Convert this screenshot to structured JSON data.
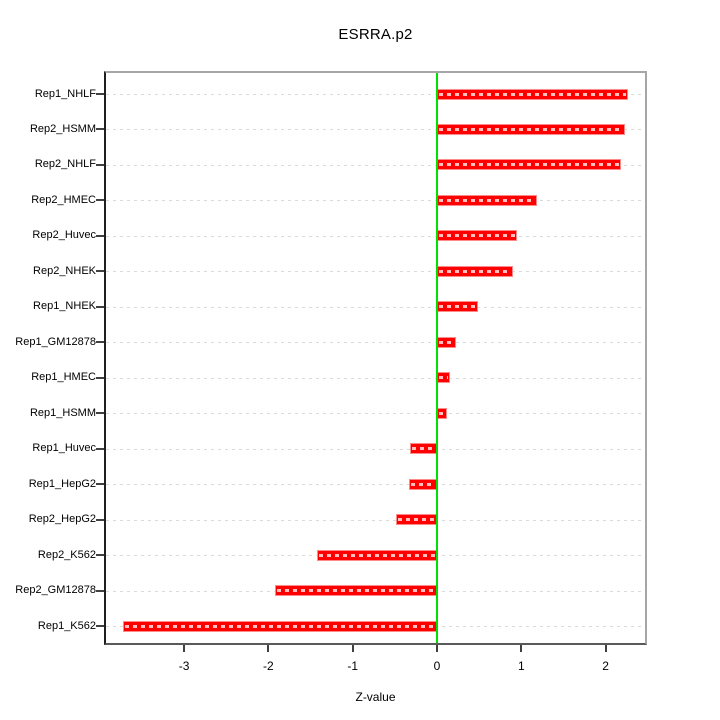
{
  "chart": {
    "title": "ESRRA.p2",
    "xlabel": "Z-value"
  },
  "chart_data": {
    "type": "bar",
    "orientation": "horizontal",
    "title": "ESRRA.p2",
    "xlabel": "Z-value",
    "ylabel": "",
    "categories": [
      "Rep1_NHLF",
      "Rep2_HSMM",
      "Rep2_NHLF",
      "Rep2_HMEC",
      "Rep2_Huvec",
      "Rep2_NHEK",
      "Rep1_NHEK",
      "Rep1_GM12878",
      "Rep1_HMEC",
      "Rep1_HSMM",
      "Rep1_Huvec",
      "Rep1_HepG2",
      "Rep2_HepG2",
      "Rep2_K562",
      "Rep2_GM12878",
      "Rep1_K562"
    ],
    "values": [
      2.27,
      2.23,
      2.18,
      1.19,
      0.95,
      0.9,
      0.49,
      0.23,
      0.16,
      0.12,
      -0.32,
      -0.33,
      -0.49,
      -1.42,
      -1.92,
      -3.72
    ],
    "x_ticks": [
      -3,
      -2,
      -1,
      0,
      1,
      2
    ],
    "xlim": [
      -3.95,
      2.48
    ],
    "grid": "horizontal-dashed-per-category",
    "legend": "none",
    "zero_reference_line": 0,
    "colors": {
      "bar_fill": "#ff0000",
      "bar_border": "#ff8a8a",
      "zero_line": "#00e100",
      "gridline": "#dadada",
      "tick": "#404040",
      "axis_text": "#000000"
    }
  }
}
